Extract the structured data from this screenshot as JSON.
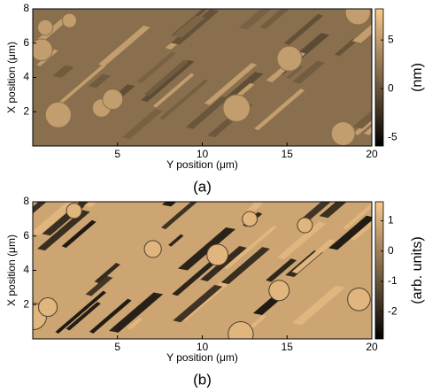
{
  "chart_data": [
    {
      "type": "heatmap",
      "xlabel": "Y position (μm)",
      "ylabel": "X position (μm)",
      "xlim": [
        0,
        20
      ],
      "ylim": [
        0,
        8
      ],
      "xticks": [
        5,
        10,
        15,
        20
      ],
      "yticks": [
        2,
        4,
        6,
        8
      ],
      "colormap": [
        "#000000",
        "#f9c98c"
      ],
      "colorbar_label": "(nm)",
      "colorbar_label_color": "#d2401e",
      "clim": [
        -5.9,
        8.2
      ],
      "colorbar_ticks": [
        -5,
        0,
        5
      ],
      "caption": "(a)"
    },
    {
      "type": "heatmap",
      "xlabel": "Y position (μm)",
      "ylabel": "X position (μm)",
      "xlim": [
        0,
        20
      ],
      "ylim": [
        0,
        8
      ],
      "xticks": [
        5,
        10,
        15,
        20
      ],
      "yticks": [
        2,
        4,
        6,
        8
      ],
      "colormap": [
        "#000000",
        "#f9c98c"
      ],
      "colorbar_label": "(arb. units)",
      "colorbar_label_color": "#d2401e",
      "clim": [
        -2.9,
        1.63
      ],
      "colorbar_ticks": [
        -2,
        -1,
        0,
        1
      ],
      "caption": "(b)"
    }
  ]
}
